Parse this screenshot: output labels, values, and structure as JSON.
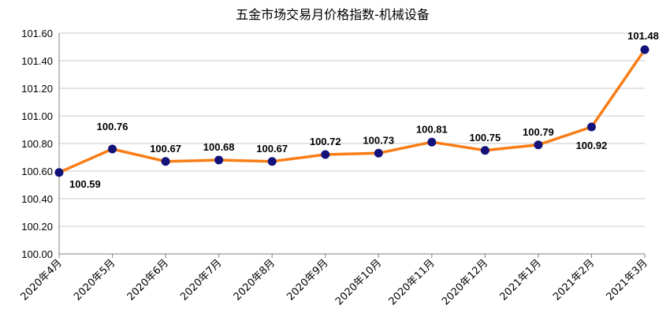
{
  "chart_data": {
    "type": "line",
    "title": "五金市场交易月价格指数-机械设备",
    "categories": [
      "2020年4月",
      "2020年5月",
      "2020年6月",
      "2020年7月",
      "2020年8月",
      "2020年9月",
      "2020年10月",
      "2020年11月",
      "2020年12月",
      "2021年1月",
      "2021年2月",
      "2021年3月"
    ],
    "series": [
      {
        "values": [
          100.59,
          100.76,
          100.67,
          100.68,
          100.67,
          100.72,
          100.73,
          100.81,
          100.75,
          100.79,
          100.92,
          101.48
        ]
      }
    ],
    "data_labels": [
      "100.59",
      "100.76",
      "100.67",
      "100.68",
      "100.67",
      "100.72",
      "100.73",
      "100.81",
      "100.75",
      "100.79",
      "100.92",
      "101.48"
    ],
    "y_ticks": [
      "100.00",
      "100.20",
      "100.40",
      "100.60",
      "100.80",
      "101.00",
      "101.20",
      "101.40",
      "101.60"
    ],
    "ylim": [
      100.0,
      101.6
    ],
    "grid": true,
    "legend": "none",
    "colors": {
      "line": "#f97d16",
      "marker": "#12127a",
      "grid": "#c8c8c8",
      "axis": "#808080"
    }
  }
}
